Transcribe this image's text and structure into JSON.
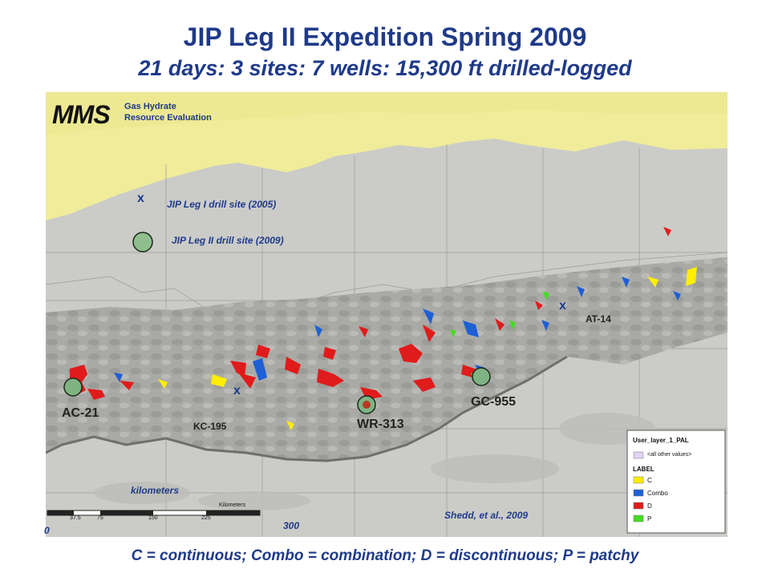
{
  "header": {
    "title": "JIP Leg II Expedition  Spring 2009",
    "subtitle": "21 days:  3 sites:  7 wells:  15,300 ft drilled-logged"
  },
  "logo": {
    "abbrev": "MMS",
    "line1": "Gas Hydrate",
    "line2": "Resource Evaluation"
  },
  "key": {
    "leg1": "JIP Leg I drill site (2005)",
    "leg2": "JIP Leg II drill site (2009)",
    "x_mark": "x"
  },
  "sites": {
    "ac21": "AC-21",
    "kc195": "KC-195",
    "wr313": "WR-313",
    "gc955": "GC-955",
    "at14": "AT-14"
  },
  "scale": {
    "title": "kilometers",
    "unit_label": "Kilometers",
    "ticks": [
      "0",
      "37.5",
      "75",
      "150",
      "225",
      "300"
    ],
    "left_value": "0",
    "right_value": "300"
  },
  "citation": "Shedd, et al., 2009",
  "legend": {
    "layer": "User_layer_1_PAL",
    "other": "<all other values>",
    "label_header": "LABEL",
    "items": [
      {
        "label": "C",
        "color": "#ffee00"
      },
      {
        "label": "Combo",
        "color": "#1e5fd6"
      },
      {
        "label": "D",
        "color": "#e01b1b"
      },
      {
        "label": "P",
        "color": "#44dd22"
      }
    ],
    "other_color": "#e3d4f5"
  },
  "colors": {
    "title": "#1f3a8a",
    "land": "#f1ec9a",
    "shelf": "#cbccc8",
    "slope": "#a9aaa6"
  },
  "footer": "C = continuous;  Combo = combination;  D = discontinuous;  P = patchy"
}
